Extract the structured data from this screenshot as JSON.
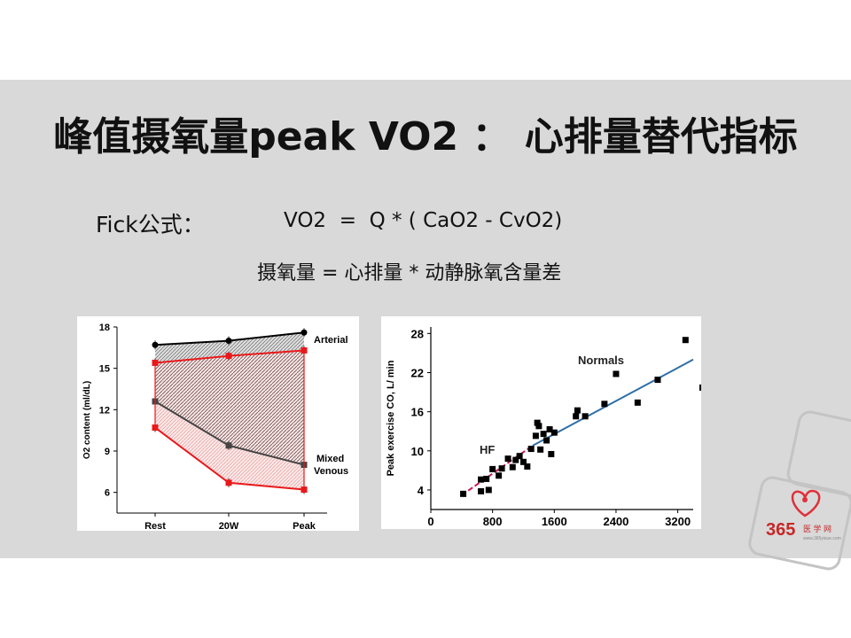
{
  "slide": {
    "title": "峰值摄氧量peak VO2 ： 心排量替代指标",
    "fick_label": "Fick公式：",
    "fick_equation": "VO2  =  Q * ( CaO2 - CvO2)",
    "fick_equation_cn": "摄氧量 = 心排量 * 动静脉氧含量差"
  },
  "logo": {
    "text": "365",
    "suffix": "医 学 网",
    "url": "www.365yixue.com"
  },
  "chart_data": [
    {
      "type": "line",
      "ylabel": "O2 content (ml/dL)",
      "xlabel": "",
      "categories": [
        "Rest",
        "20W",
        "Peak"
      ],
      "ylim": [
        4.5,
        18
      ],
      "yticks": [
        6,
        9,
        12,
        15,
        18
      ],
      "series": [
        {
          "name": "Arterial",
          "color": "#000000",
          "values": [
            16.7,
            17.0,
            17.6
          ]
        },
        {
          "name": "",
          "color": "#e8191b",
          "values": [
            15.4,
            15.9,
            16.3
          ]
        },
        {
          "name": "Mixed Venous",
          "color": "#444444",
          "values": [
            12.6,
            9.4,
            8.0
          ]
        },
        {
          "name": "",
          "color": "#e8191b",
          "values": [
            10.7,
            6.7,
            6.2
          ]
        }
      ],
      "labels": {
        "arterial": "Arterial",
        "venous_line1": "Mixed",
        "venous_line2": "Venous"
      }
    },
    {
      "type": "scatter",
      "xlabel": "",
      "ylabel": "Peak exercise CO, L/ min",
      "xlim": [
        0,
        3400
      ],
      "ylim": [
        1,
        29
      ],
      "xticks": [
        0,
        800,
        1600,
        2400,
        3200
      ],
      "yticks": [
        4,
        10,
        16,
        22,
        28
      ],
      "annotations": {
        "normals": "Normals",
        "hf": "HF"
      },
      "points": [
        [
          420,
          3.4
        ],
        [
          650,
          3.8
        ],
        [
          750,
          4.0
        ],
        [
          650,
          5.6
        ],
        [
          720,
          5.7
        ],
        [
          800,
          7.2
        ],
        [
          880,
          6.2
        ],
        [
          920,
          7.3
        ],
        [
          1000,
          8.8
        ],
        [
          1060,
          7.5
        ],
        [
          1100,
          8.6
        ],
        [
          1150,
          9.2
        ],
        [
          1200,
          8.3
        ],
        [
          1250,
          7.6
        ],
        [
          1300,
          10.3
        ],
        [
          1360,
          12.3
        ],
        [
          1400,
          13.8
        ],
        [
          1420,
          10.2
        ],
        [
          1380,
          14.3
        ],
        [
          1460,
          12.6
        ],
        [
          1500,
          11.6
        ],
        [
          1540,
          13.3
        ],
        [
          1560,
          9.5
        ],
        [
          1600,
          12.8
        ],
        [
          1880,
          15.3
        ],
        [
          1900,
          16.2
        ],
        [
          2000,
          15.3
        ],
        [
          2250,
          17.2
        ],
        [
          2400,
          21.8
        ],
        [
          2680,
          17.4
        ],
        [
          2940,
          20.9
        ],
        [
          3300,
          27.0
        ],
        [
          3520,
          19.7
        ]
      ],
      "fits": [
        {
          "name": "HF",
          "color": "#c8174f",
          "x": [
            400,
            1320
          ],
          "y": [
            3.2,
            10.8
          ]
        },
        {
          "name": "Normals",
          "color": "#2e6ea6",
          "x": [
            1320,
            3400
          ],
          "y": [
            10.8,
            24.0
          ]
        }
      ]
    }
  ]
}
